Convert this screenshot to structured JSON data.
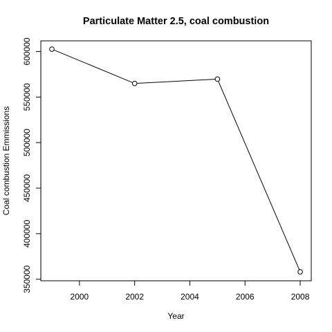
{
  "chart_data": {
    "type": "line",
    "title": "Particulate Matter 2.5, coal combustion",
    "xlabel": "Year",
    "ylabel": "Coal combustion Emmissions",
    "x": [
      1999,
      2002,
      2005,
      2008
    ],
    "series": [
      {
        "name": "Coal combustion Emmissions",
        "values": [
          602600,
          564900,
          569700,
          358100
        ]
      }
    ],
    "xlim": [
      1998.6,
      2008.4
    ],
    "ylim": [
      348300,
      611700
    ],
    "x_ticks": [
      2000,
      2002,
      2004,
      2006,
      2008
    ],
    "x_tick_labels": [
      "2000",
      "2002",
      "2004",
      "2006",
      "2008"
    ],
    "y_ticks": [
      350000,
      400000,
      450000,
      500000,
      550000,
      600000
    ],
    "y_tick_labels": [
      "350000",
      "400000",
      "450000",
      "500000",
      "550000",
      "600000"
    ],
    "marker": "open-circle",
    "line_color": "#000000",
    "grid": false,
    "legend": "none"
  }
}
